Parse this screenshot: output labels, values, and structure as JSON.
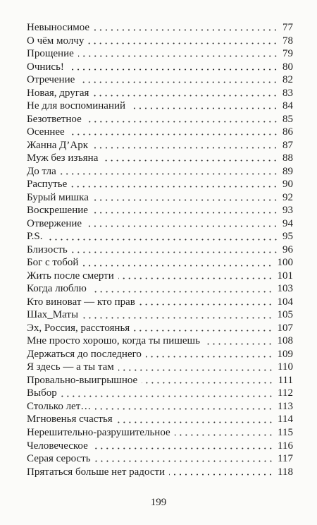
{
  "toc": {
    "entries": [
      {
        "title": "Невыносимое",
        "page": "77"
      },
      {
        "title": "О чём молчу",
        "page": "78"
      },
      {
        "title": "Прощение",
        "page": "79"
      },
      {
        "title": "Очнись!",
        "page": "80"
      },
      {
        "title": "Отречение",
        "page": "82"
      },
      {
        "title": "Новая, другая",
        "page": "83"
      },
      {
        "title": "Не для воспоминаний",
        "page": "84"
      },
      {
        "title": "Безответное",
        "page": "85"
      },
      {
        "title": "Осеннее",
        "page": "86"
      },
      {
        "title": "Жанна Д’Арк",
        "page": "87"
      },
      {
        "title": "Муж без изъяна",
        "page": "88"
      },
      {
        "title": "До тла",
        "page": "89"
      },
      {
        "title": "Распутье",
        "page": "90"
      },
      {
        "title": "Бурый мишка",
        "page": "92"
      },
      {
        "title": "Воскрешение",
        "page": "93"
      },
      {
        "title": "Отвержение",
        "page": "94"
      },
      {
        "title": "P.S.",
        "page": "95"
      },
      {
        "title": "Близость",
        "page": "96"
      },
      {
        "title": "Бог с тобой",
        "page": "100"
      },
      {
        "title": "Жить после смерти",
        "page": "101"
      },
      {
        "title": "Когда люблю",
        "page": "103"
      },
      {
        "title": "Кто виноват — кто прав",
        "page": "104"
      },
      {
        "title": "Шах_Маты",
        "page": "105"
      },
      {
        "title": "Эх, Россия, расстоянья",
        "page": "107"
      },
      {
        "title": "Мне просто хорошо, когда ты пишешь",
        "page": "108"
      },
      {
        "title": "Держаться до последнего",
        "page": "109"
      },
      {
        "title": "Я здесь — а ты там",
        "page": "110"
      },
      {
        "title": "Провально-выигрышное",
        "page": "111"
      },
      {
        "title": "Выбор",
        "page": "112"
      },
      {
        "title": "Столько лет…",
        "page": "113"
      },
      {
        "title": "Мгновенья счастья",
        "page": "114"
      },
      {
        "title": "Нерешительно-разрушительное",
        "page": "115"
      },
      {
        "title": "Человеческое",
        "page": "116"
      },
      {
        "title": "Серая серость",
        "page": "117"
      },
      {
        "title": "Прятаться больше нет радости",
        "page": "118"
      }
    ]
  },
  "footer": {
    "page_number": "199"
  }
}
